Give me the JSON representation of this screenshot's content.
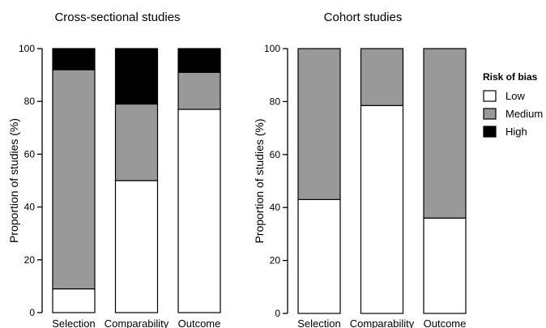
{
  "legend": {
    "title": "Risk of bias",
    "entries": [
      {
        "name": "Low",
        "color": "#ffffff"
      },
      {
        "name": "Medium",
        "color": "#999999"
      },
      {
        "name": "High",
        "color": "#000000"
      }
    ]
  },
  "chart_data": [
    {
      "type": "bar",
      "stacked": true,
      "title": "Cross-sectional studies",
      "ylabel": "Proportion of studies (%)",
      "xlabel": "",
      "ylim": [
        0,
        100
      ],
      "yticks": [
        0,
        20,
        40,
        60,
        80,
        100
      ],
      "categories": [
        "Selection",
        "Comparability",
        "Outcome"
      ],
      "series": [
        {
          "name": "Low",
          "color": "#ffffff",
          "values": [
            9,
            50,
            77
          ]
        },
        {
          "name": "Medium",
          "color": "#999999",
          "values": [
            83,
            29,
            14
          ]
        },
        {
          "name": "High",
          "color": "#000000",
          "values": [
            8,
            21,
            9
          ]
        }
      ]
    },
    {
      "type": "bar",
      "stacked": true,
      "title": "Cohort studies",
      "ylabel": "Proportion of studies (%)",
      "xlabel": "",
      "ylim": [
        0,
        100
      ],
      "yticks": [
        0,
        20,
        40,
        60,
        80,
        100
      ],
      "categories": [
        "Selection",
        "Comparability",
        "Outcome"
      ],
      "series": [
        {
          "name": "Low",
          "color": "#ffffff",
          "values": [
            43,
            78.5,
            36
          ]
        },
        {
          "name": "Medium",
          "color": "#999999",
          "values": [
            57,
            21.5,
            64
          ]
        },
        {
          "name": "High",
          "color": "#000000",
          "values": [
            0,
            0,
            0
          ]
        }
      ]
    }
  ]
}
